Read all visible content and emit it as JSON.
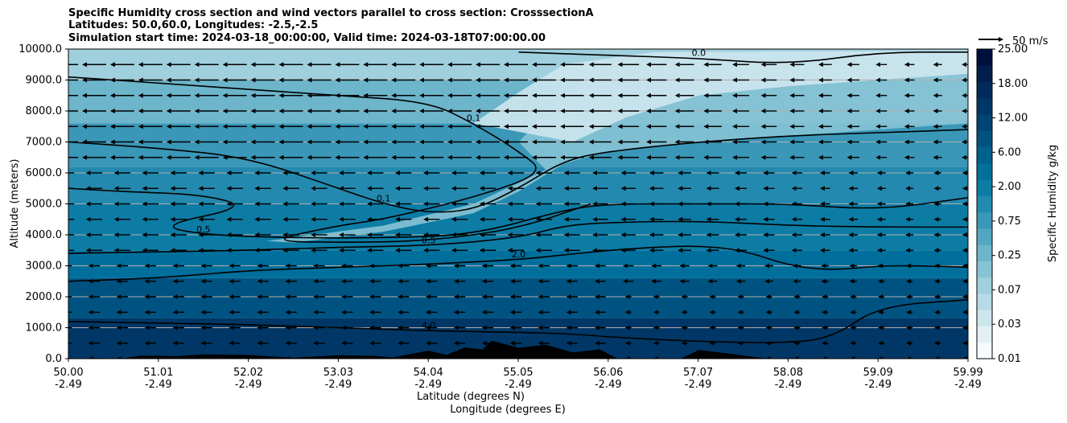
{
  "title_lines": [
    "Specific Humidity cross section and wind vectors parallel to cross section: CrosssectionA",
    "Latitudes: 50.0,60.0, Longitudes: -2.5,-2.5",
    "Simulation start time: 2024-03-18_00:00:00, Valid time: 2024-03-18T07:00:00.00"
  ],
  "chart_data": {
    "type": "heatmap",
    "title": "Specific Humidity cross section and wind vectors parallel to cross section: CrosssectionA",
    "xlabel_lat": "Latitude (degrees N)",
    "xlabel_lon": "Longitude (degrees E)",
    "ylabel": "Altitude (meters)",
    "ylim": [
      0,
      10000
    ],
    "xlim": [
      50.0,
      59.99
    ],
    "y_ticks": [
      "0.0",
      "1000.0",
      "2000.0",
      "3000.0",
      "4000.0",
      "5000.0",
      "6000.0",
      "7000.0",
      "8000.0",
      "9000.0",
      "10000.0"
    ],
    "x_ticks_lat": [
      "50.00",
      "51.01",
      "52.02",
      "53.03",
      "54.04",
      "55.05",
      "56.06",
      "57.07",
      "58.08",
      "59.09",
      "59.99"
    ],
    "x_ticks_lon": [
      "-2.49",
      "-2.49",
      "-2.49",
      "-2.49",
      "-2.49",
      "-2.49",
      "-2.49",
      "-2.49",
      "-2.49",
      "-2.49",
      "-2.49"
    ],
    "grid": "horizontal",
    "colorbar": {
      "label": "Specific Humidity g/kg",
      "ticks": [
        "0.01",
        "0.03",
        "0.07",
        "0.25",
        "0.75",
        "2.00",
        "6.00",
        "12.00",
        "18.00",
        "25.00"
      ],
      "colors": [
        "#f7fbfd",
        "#e3f1f5",
        "#cde6ee",
        "#b7dbe6",
        "#a0cfdd",
        "#87c3d5",
        "#6cb5cb",
        "#53a6c1",
        "#3a97b8",
        "#2389ae",
        "#0d7ca5",
        "#006f9c",
        "#00618f",
        "#005381",
        "#004574",
        "#003766",
        "#002a59",
        "#001d4c",
        "#00103e"
      ]
    },
    "wind_reference": {
      "label": "50 m/s"
    },
    "contour_labels": [
      "0.0",
      "0.1",
      "0.2",
      "0.5",
      "2.0",
      "4.0"
    ],
    "contour_levels": [
      {
        "level": "4.0",
        "points": [
          [
            50.0,
            1200
          ],
          [
            51.0,
            1150
          ],
          [
            52.0,
            1100
          ],
          [
            53.0,
            1000
          ],
          [
            54.0,
            900
          ],
          [
            55.0,
            850
          ],
          [
            55.6,
            800
          ],
          [
            56.0,
            700
          ],
          [
            57.0,
            550
          ],
          [
            58.0,
            500
          ],
          [
            58.5,
            700
          ],
          [
            59.0,
            1700
          ],
          [
            59.99,
            1900
          ]
        ]
      },
      {
        "level": "2.0",
        "points": [
          [
            50.0,
            2500
          ],
          [
            51.0,
            2600
          ],
          [
            52.0,
            2850
          ],
          [
            53.0,
            2950
          ],
          [
            54.0,
            3050
          ],
          [
            55.0,
            3200
          ],
          [
            55.5,
            3350
          ],
          [
            56.0,
            3500
          ],
          [
            56.5,
            3600
          ],
          [
            57.0,
            3650
          ],
          [
            57.5,
            3500
          ],
          [
            58.0,
            3000
          ],
          [
            58.5,
            2850
          ],
          [
            59.0,
            3000
          ],
          [
            59.5,
            3000
          ],
          [
            59.99,
            2950
          ]
        ]
      },
      {
        "level": "0.5",
        "points": [
          [
            50.0,
            3400
          ],
          [
            51.0,
            3450
          ],
          [
            52.0,
            3500
          ],
          [
            53.0,
            3600
          ],
          [
            54.0,
            3650
          ],
          [
            55.0,
            3900
          ],
          [
            55.5,
            4300
          ],
          [
            56.0,
            4400
          ],
          [
            57.0,
            4450
          ],
          [
            58.0,
            4300
          ],
          [
            59.0,
            4250
          ],
          [
            59.99,
            4250
          ]
        ]
      },
      {
        "level": "0.5",
        "points": [
          [
            50.0,
            5500
          ],
          [
            50.6,
            5400
          ],
          [
            51.5,
            5300
          ],
          [
            52.0,
            4900
          ],
          [
            51.0,
            4300
          ],
          [
            51.5,
            4000
          ],
          [
            52.5,
            3900
          ],
          [
            53.5,
            3900
          ],
          [
            54.5,
            4000
          ],
          [
            55.5,
            4800
          ],
          [
            56.0,
            5000
          ],
          [
            57.0,
            5000
          ],
          [
            58.0,
            5000
          ],
          [
            59.0,
            4800
          ],
          [
            59.99,
            5200
          ]
        ]
      },
      {
        "level": "0.1",
        "points": [
          [
            50.0,
            7000
          ],
          [
            51.0,
            6800
          ],
          [
            52.0,
            6500
          ],
          [
            53.0,
            5500
          ],
          [
            53.5,
            5000
          ],
          [
            54.0,
            4700
          ],
          [
            54.5,
            4800
          ],
          [
            55.0,
            5500
          ],
          [
            55.5,
            6400
          ],
          [
            56.0,
            6700
          ],
          [
            57.0,
            7000
          ],
          [
            58.0,
            7200
          ],
          [
            59.0,
            7300
          ],
          [
            59.99,
            7400
          ]
        ]
      },
      {
        "level": "0.1",
        "points": [
          [
            50.0,
            9100
          ],
          [
            51.0,
            8900
          ],
          [
            52.0,
            8700
          ],
          [
            53.0,
            8500
          ],
          [
            54.0,
            8300
          ],
          [
            54.5,
            7600
          ],
          [
            55.0,
            6700
          ],
          [
            55.3,
            6000
          ],
          [
            54.5,
            5200
          ],
          [
            53.5,
            4500
          ],
          [
            53.0,
            4300
          ],
          [
            52.2,
            3800
          ],
          [
            53.0,
            3750
          ],
          [
            54.0,
            3800
          ],
          [
            55.0,
            4200
          ],
          [
            55.8,
            5000
          ]
        ]
      },
      {
        "level": "0.0",
        "points": [
          [
            55.0,
            9900
          ],
          [
            56.0,
            9800
          ],
          [
            57.0,
            9700
          ],
          [
            58.0,
            9500
          ],
          [
            59.0,
            9900
          ],
          [
            59.99,
            9900
          ]
        ]
      }
    ],
    "terrain_m": [
      [
        50.0,
        0
      ],
      [
        50.6,
        0
      ],
      [
        50.8,
        100
      ],
      [
        51.2,
        80
      ],
      [
        51.5,
        140
      ],
      [
        52.0,
        120
      ],
      [
        52.5,
        30
      ],
      [
        53.0,
        110
      ],
      [
        53.4,
        90
      ],
      [
        53.6,
        40
      ],
      [
        54.0,
        260
      ],
      [
        54.2,
        120
      ],
      [
        54.4,
        360
      ],
      [
        54.6,
        300
      ],
      [
        54.7,
        580
      ],
      [
        55.0,
        350
      ],
      [
        55.3,
        450
      ],
      [
        55.6,
        200
      ],
      [
        55.9,
        300
      ],
      [
        56.1,
        0
      ],
      [
        56.8,
        0
      ],
      [
        57.0,
        280
      ],
      [
        57.3,
        180
      ],
      [
        57.6,
        60
      ],
      [
        57.8,
        0
      ],
      [
        59.99,
        0
      ]
    ]
  }
}
